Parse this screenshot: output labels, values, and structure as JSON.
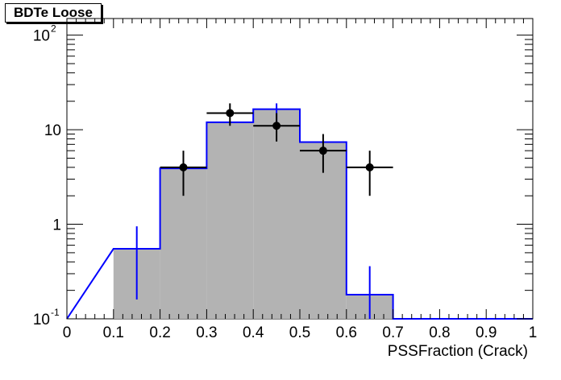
{
  "chart_data": {
    "type": "bar",
    "title": "BDTe Loose",
    "xlabel": "PSSFraction (Crack)",
    "ylabel": "",
    "xlim": [
      0,
      1
    ],
    "ylim": [
      0.1,
      150
    ],
    "yscale": "log",
    "x_tick_labels": [
      "0",
      "0.1",
      "0.2",
      "0.3",
      "0.4",
      "0.5",
      "0.6",
      "0.7",
      "0.8",
      "0.9",
      "1"
    ],
    "y_tick_labels": [
      {
        "value": 0.1,
        "base": "10",
        "exp": "-1"
      },
      {
        "value": 1,
        "base": "1",
        "exp": ""
      },
      {
        "value": 10,
        "base": "10",
        "exp": ""
      },
      {
        "value": 100,
        "base": "10",
        "exp": "2"
      }
    ],
    "grid": false,
    "series": [
      {
        "style": "filled-histogram",
        "color": "#0000ff",
        "fill": "#b3b3b3",
        "bins": [
          {
            "x0": 0.1,
            "x1": 0.2,
            "value": 0.55,
            "err_low": 0.16,
            "err_high": 0.95
          },
          {
            "x0": 0.2,
            "x1": 0.3,
            "value": 3.9
          },
          {
            "x0": 0.3,
            "x1": 0.4,
            "value": 12
          },
          {
            "x0": 0.4,
            "x1": 0.5,
            "value": 16.5,
            "err_low": 10,
            "err_high": 19
          },
          {
            "x0": 0.5,
            "x1": 0.6,
            "value": 7.4
          },
          {
            "x0": 0.6,
            "x1": 0.7,
            "value": 0.18,
            "err_low": 0.1,
            "err_high": 0.36
          }
        ]
      },
      {
        "style": "points-with-errors",
        "color": "#000000",
        "points": [
          {
            "x": 0.25,
            "y": 4,
            "xerr": 0.05,
            "ylow": 2,
            "yhigh": 6
          },
          {
            "x": 0.35,
            "y": 15,
            "xerr": 0.05,
            "ylow": 11,
            "yhigh": 19
          },
          {
            "x": 0.45,
            "y": 11,
            "xerr": 0.05,
            "ylow": 7.5,
            "yhigh": 15
          },
          {
            "x": 0.55,
            "y": 6,
            "xerr": 0.05,
            "ylow": 3.5,
            "yhigh": 9
          },
          {
            "x": 0.65,
            "y": 4,
            "xerr": 0.05,
            "ylow": 2,
            "yhigh": 6
          }
        ]
      }
    ]
  }
}
